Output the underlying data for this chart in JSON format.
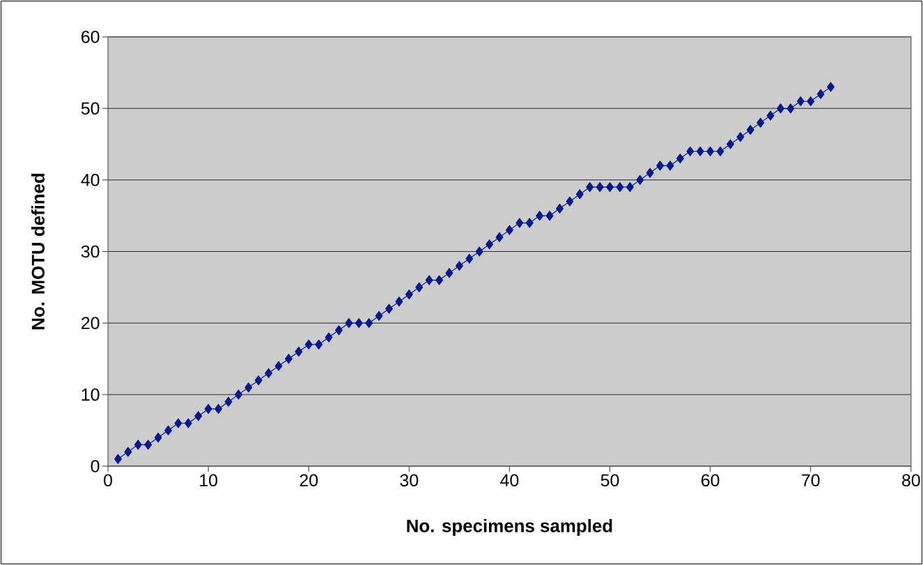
{
  "chart_data": {
    "type": "line",
    "xlabel": "No. specimens sampled",
    "ylabel": "No. MOTU defined",
    "x": [
      1,
      2,
      3,
      4,
      5,
      6,
      7,
      8,
      9,
      10,
      11,
      12,
      13,
      14,
      15,
      16,
      17,
      18,
      19,
      20,
      21,
      22,
      23,
      24,
      25,
      26,
      27,
      28,
      29,
      30,
      31,
      32,
      33,
      34,
      35,
      36,
      37,
      38,
      39,
      40,
      41,
      42,
      43,
      44,
      45,
      46,
      47,
      48,
      49,
      50,
      51,
      52,
      53,
      54,
      55,
      56,
      57,
      58,
      59,
      60,
      61,
      62,
      63,
      64,
      65,
      66,
      67,
      68,
      69,
      70,
      71,
      72
    ],
    "series": [
      {
        "color": "#00188f",
        "values": [
          1,
          2,
          3,
          3,
          4,
          5,
          6,
          6,
          7,
          8,
          8,
          9,
          10,
          11,
          12,
          13,
          14,
          15,
          16,
          17,
          17,
          18,
          19,
          20,
          20,
          20,
          21,
          22,
          23,
          24,
          25,
          26,
          26,
          27,
          28,
          29,
          30,
          31,
          32,
          33,
          34,
          34,
          35,
          35,
          36,
          37,
          38,
          39,
          39,
          39,
          39,
          39,
          40,
          41,
          42,
          42,
          43,
          44,
          44,
          44,
          44,
          45,
          46,
          47,
          48,
          49,
          50,
          50,
          51,
          51,
          52,
          53
        ]
      }
    ],
    "xlim": [
      0,
      80
    ],
    "xticks": [
      0,
      10,
      20,
      30,
      40,
      50,
      60,
      70,
      80
    ],
    "ylim": [
      0,
      60
    ],
    "yticks": [
      0,
      10,
      20,
      30,
      40,
      50,
      60
    ],
    "grid": "y",
    "marker": "diamond",
    "line_style": "solid"
  }
}
